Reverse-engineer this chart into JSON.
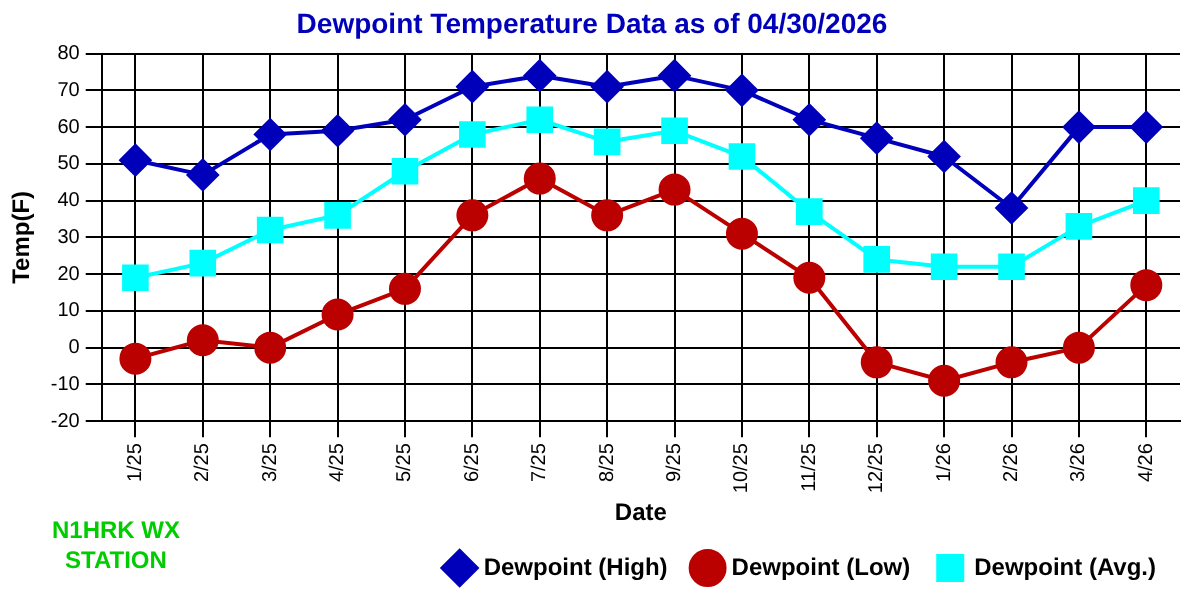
{
  "chart_data": {
    "type": "line",
    "title": "Dewpoint Temperature Data as of 04/30/2026",
    "xlabel": "Date",
    "ylabel": "Temp(F)",
    "categories": [
      "1/25",
      "2/25",
      "3/25",
      "4/25",
      "5/25",
      "6/25",
      "7/25",
      "8/25",
      "9/25",
      "10/25",
      "11/25",
      "12/25",
      "1/26",
      "2/26",
      "3/26",
      "4/26"
    ],
    "series": [
      {
        "name": "Dewpoint (High)",
        "color": "#0000bb",
        "marker": "diamond",
        "values": [
          51,
          47,
          58,
          59,
          62,
          71,
          74,
          71,
          74,
          70,
          62,
          57,
          52,
          38,
          60,
          60
        ]
      },
      {
        "name": "Dewpoint (Low)",
        "color": "#bb0000",
        "marker": "circle",
        "values": [
          -3,
          2,
          0,
          9,
          16,
          36,
          46,
          36,
          43,
          31,
          19,
          -4,
          -9,
          -4,
          0,
          17
        ]
      },
      {
        "name": "Dewpoint (Avg.)",
        "color": "#00ffff",
        "marker": "square",
        "values": [
          19,
          23,
          32,
          36,
          48,
          58,
          62,
          56,
          59,
          52,
          37,
          24,
          22,
          22,
          33,
          40
        ]
      }
    ],
    "ylim": [
      -20,
      80
    ],
    "yticks": [
      -20,
      -10,
      0,
      10,
      20,
      30,
      40,
      50,
      60,
      70,
      80
    ],
    "grid": true,
    "legend": "bottom",
    "annotations": [
      "N1HRK WX STATION"
    ]
  }
}
